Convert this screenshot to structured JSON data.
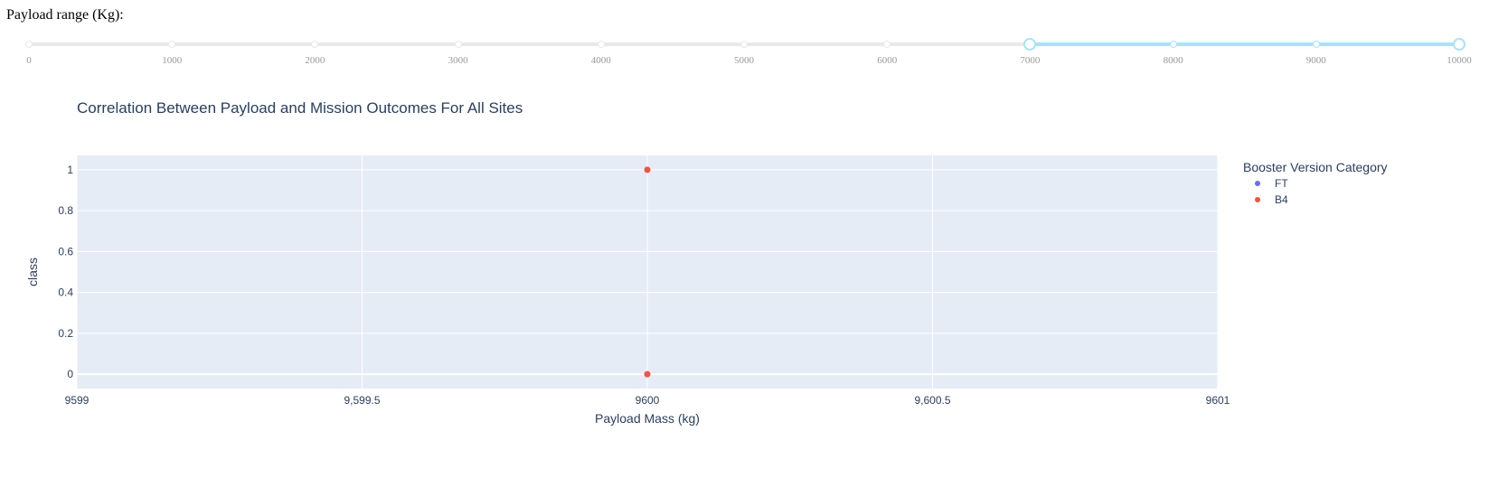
{
  "slider": {
    "label": "Payload range (Kg):",
    "min": 0,
    "max": 10000,
    "marks": [
      0,
      1000,
      2000,
      3000,
      4000,
      5000,
      6000,
      7000,
      8000,
      9000,
      10000
    ],
    "mark_labels": [
      "0",
      "1000",
      "2000",
      "3000",
      "4000",
      "5000",
      "6000",
      "7000",
      "8000",
      "9000",
      "10000"
    ],
    "value": [
      7000,
      10000
    ],
    "accent_color": "#abe2fb",
    "track_color": "#e9e9e9"
  },
  "chart_data": {
    "type": "scatter",
    "title": "Correlation Between Payload and Mission Outcomes For All Sites",
    "xlabel": "Payload Mass (kg)",
    "ylabel": "class",
    "xlim": [
      9599,
      9601
    ],
    "ylim": [
      -0.07,
      1.07
    ],
    "x_ticks": [
      9599,
      9599.5,
      9600,
      9600.5,
      9601
    ],
    "x_tick_labels": [
      "9599",
      "9,599.5",
      "9600",
      "9,600.5",
      "9601"
    ],
    "y_ticks": [
      0,
      0.2,
      0.4,
      0.6,
      0.8,
      1
    ],
    "y_tick_labels": [
      "0",
      "0.2",
      "0.4",
      "0.6",
      "0.8",
      "1"
    ],
    "grid": true,
    "plot_bgcolor": "#e5ecf6",
    "legend": {
      "title": "Booster Version Category",
      "placement": "right"
    },
    "series": [
      {
        "name": "FT",
        "color": "#636efa",
        "points": []
      },
      {
        "name": "B4",
        "color": "#ef553b",
        "points": [
          {
            "x": 9600,
            "y": 1
          },
          {
            "x": 9600,
            "y": 0
          }
        ]
      }
    ]
  }
}
